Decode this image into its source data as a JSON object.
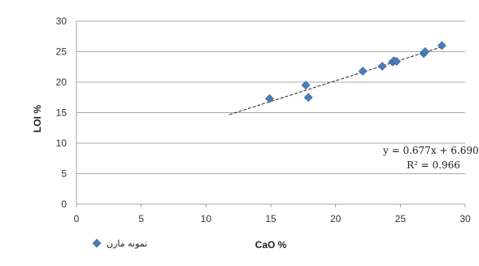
{
  "chart_data": {
    "type": "scatter",
    "title": "",
    "xlabel": "CaO %",
    "ylabel": "LOI %",
    "xlim": [
      0,
      30
    ],
    "ylim": [
      0,
      30
    ],
    "x_ticks": [
      "0",
      "5",
      "10",
      "15",
      "20",
      "25",
      "30"
    ],
    "y_ticks": [
      "0",
      "5",
      "10",
      "15",
      "20",
      "25",
      "30"
    ],
    "grid": "horizontal",
    "legend_position": "bottom-left",
    "series": [
      {
        "name": "نمونه مارن",
        "color": "#4a7ebb",
        "marker": "diamond",
        "points": [
          {
            "x": 14.9,
            "y": 17.3
          },
          {
            "x": 17.7,
            "y": 19.5
          },
          {
            "x": 17.9,
            "y": 17.5
          },
          {
            "x": 22.1,
            "y": 21.8
          },
          {
            "x": 23.6,
            "y": 22.6
          },
          {
            "x": 24.4,
            "y": 23.3
          },
          {
            "x": 24.5,
            "y": 23.5
          },
          {
            "x": 24.7,
            "y": 23.4
          },
          {
            "x": 26.8,
            "y": 24.7
          },
          {
            "x": 26.9,
            "y": 25.0
          },
          {
            "x": 28.2,
            "y": 26.0
          }
        ]
      }
    ],
    "trendline": {
      "type": "linear",
      "slope": 0.677,
      "intercept": 6.69,
      "x_range": [
        11.8,
        28.2
      ],
      "equation": "y = 0.677x + 6.690",
      "r_squared": "R² = 0.966"
    }
  }
}
